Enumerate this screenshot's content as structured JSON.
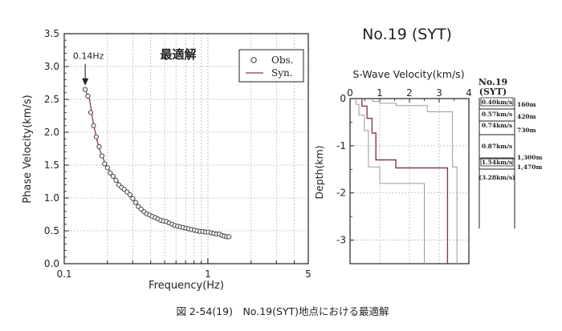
{
  "caption": "図 2-54(19)　No.19(SYT)地点における最適解",
  "colors": {
    "axis": "#222222",
    "grid": "#b8b8b8",
    "obs": "#444444",
    "syn": "#8b3a4a",
    "profile_gray": "#9a9a9a"
  },
  "chart_data": [
    {
      "type": "scatter",
      "title": "最適解",
      "xlabel": "Frequency(Hz)",
      "ylabel": "Phase Velocity(km/s)",
      "x_scale": "log",
      "xlim": [
        0.1,
        5
      ],
      "ylim": [
        0,
        3.5
      ],
      "x_ticks": [
        0.1,
        1,
        5
      ],
      "x_tick_labels": [
        "0.1",
        "1",
        "5"
      ],
      "y_ticks": [
        0,
        0.5,
        1,
        1.5,
        2,
        2.5,
        3,
        3.5
      ],
      "y_tick_labels": [
        "0.0",
        "0.5",
        "1.0",
        "1.5",
        "2.0",
        "2.5",
        "3.0",
        "3.5"
      ],
      "grid": true,
      "legend": "top-right",
      "annotation": {
        "label": "0.14Hz",
        "x": 0.14,
        "y": 2.65
      },
      "series": [
        {
          "name": "Obs.",
          "marker": "open-circle",
          "x": [
            0.14,
            0.146,
            0.153,
            0.16,
            0.167,
            0.175,
            0.183,
            0.191,
            0.2,
            0.209,
            0.219,
            0.229,
            0.24,
            0.251,
            0.262,
            0.274,
            0.287,
            0.3,
            0.314,
            0.328,
            0.343,
            0.359,
            0.375,
            0.393,
            0.411,
            0.43,
            0.449,
            0.47,
            0.491,
            0.514,
            0.537,
            0.562,
            0.588,
            0.615,
            0.643,
            0.672,
            0.703,
            0.735,
            0.769,
            0.804,
            0.841,
            0.88,
            0.92,
            0.962,
            1.006,
            1.052,
            1.1,
            1.15,
            1.2,
            1.25,
            1.3,
            1.35,
            1.4
          ],
          "values": [
            2.65,
            2.55,
            2.3,
            2.1,
            1.93,
            1.78,
            1.64,
            1.52,
            1.46,
            1.38,
            1.33,
            1.27,
            1.2,
            1.16,
            1.13,
            1.09,
            1.05,
            0.99,
            0.93,
            0.87,
            0.83,
            0.79,
            0.76,
            0.74,
            0.72,
            0.7,
            0.68,
            0.66,
            0.65,
            0.64,
            0.62,
            0.6,
            0.58,
            0.57,
            0.56,
            0.55,
            0.54,
            0.53,
            0.52,
            0.51,
            0.5,
            0.49,
            0.49,
            0.48,
            0.48,
            0.47,
            0.46,
            0.45,
            0.45,
            0.43,
            0.42,
            0.41,
            0.41
          ]
        },
        {
          "name": "Syn.",
          "marker": "line",
          "x": [
            0.14,
            0.15,
            0.16,
            0.17,
            0.18,
            0.19,
            0.2,
            0.21,
            0.22,
            0.23,
            0.24,
            0.26,
            0.28,
            0.3,
            0.32,
            0.34,
            0.36,
            0.38,
            0.4,
            0.43,
            0.46,
            0.5,
            0.55,
            0.6,
            0.65,
            0.7,
            0.75,
            0.8,
            0.85,
            0.9,
            0.95,
            1.0,
            1.05,
            1.1,
            1.15,
            1.2,
            1.25,
            1.3,
            1.35,
            1.4
          ],
          "values": [
            2.65,
            2.5,
            2.12,
            1.86,
            1.68,
            1.56,
            1.47,
            1.39,
            1.33,
            1.28,
            1.23,
            1.15,
            1.08,
            1.0,
            0.92,
            0.86,
            0.81,
            0.77,
            0.74,
            0.71,
            0.68,
            0.65,
            0.62,
            0.59,
            0.57,
            0.55,
            0.54,
            0.52,
            0.51,
            0.5,
            0.49,
            0.48,
            0.48,
            0.47,
            0.46,
            0.45,
            0.44,
            0.43,
            0.42,
            0.41
          ]
        }
      ]
    },
    {
      "type": "line",
      "title": "No.19 (SYT)",
      "xlabel": "S-Wave Velocity(km/s)",
      "ylabel": "Depth(km)",
      "xlim": [
        0,
        4
      ],
      "ylim": [
        -3.5,
        0
      ],
      "x_ticks": [
        0,
        1,
        2,
        3,
        4
      ],
      "x_tick_labels": [
        "0",
        "1",
        "2",
        "3",
        "4"
      ],
      "y_ticks": [
        0,
        -1,
        -2,
        -3
      ],
      "y_tick_labels": [
        "0",
        "-1",
        "-2",
        "-3"
      ],
      "grid": true,
      "series": [
        {
          "style": "dark",
          "x": [
            0.4,
            0.4,
            0.57,
            0.57,
            0.74,
            0.74,
            0.87,
            0.87,
            1.54,
            1.54,
            3.28,
            3.28
          ],
          "values": [
            0,
            -0.16,
            -0.16,
            -0.42,
            -0.42,
            -0.73,
            -0.73,
            -1.3,
            -1.3,
            -1.47,
            -1.47,
            -3.5
          ]
        },
        {
          "style": "gray-lower",
          "x": [
            0.2,
            0.2,
            0.3,
            0.3,
            0.48,
            0.48,
            0.62,
            0.62,
            1.0,
            1.0,
            2.5,
            2.5
          ],
          "values": [
            0,
            -0.12,
            -0.12,
            -0.35,
            -0.35,
            -0.68,
            -0.68,
            -1.45,
            -1.45,
            -1.8,
            -1.8,
            -3.5
          ]
        },
        {
          "style": "gray-upper",
          "x": [
            0.75,
            0.75,
            1.0,
            1.0,
            1.55,
            1.55,
            2.6,
            2.6,
            3.45,
            3.45,
            3.6,
            3.6
          ],
          "values": [
            0,
            -0.06,
            -0.06,
            -0.1,
            -0.1,
            -0.15,
            -0.15,
            -0.28,
            -0.28,
            -1.45,
            -1.45,
            -3.5
          ]
        }
      ]
    }
  ],
  "column": {
    "title_1": "No.19",
    "title_2": "(SYT)",
    "layers": [
      {
        "velocity": "0.40km/s",
        "depth": "160m",
        "boxed": true
      },
      {
        "velocity": "0.57km/s",
        "depth": "420m",
        "boxed": false
      },
      {
        "velocity": "0.74km/s",
        "depth": "730m",
        "boxed": false
      },
      {
        "velocity": "0.87km/s",
        "depth": "",
        "boxed": false
      },
      {
        "velocity": "1.54km/s",
        "depth": "1,300m",
        "boxed": true
      },
      {
        "velocity": "(3.28km/s)",
        "depth": "1,470m",
        "boxed": false
      }
    ]
  }
}
